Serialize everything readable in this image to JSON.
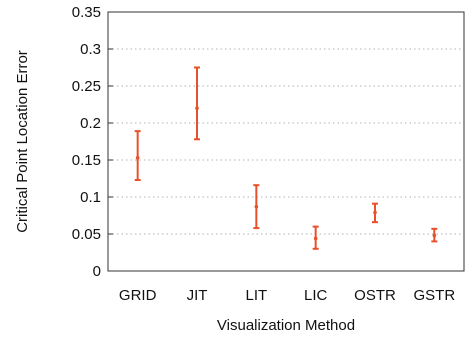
{
  "chart_data": {
    "type": "scatter",
    "subtype": "error-bar",
    "title": "",
    "xlabel": "Visualization Method",
    "ylabel": "Critical Point Location Error",
    "categories": [
      "GRID",
      "JIT",
      "LIT",
      "LIC",
      "OSTR",
      "GSTR"
    ],
    "series": [
      {
        "mean": [
          0.153,
          0.22,
          0.087,
          0.044,
          0.079,
          0.048
        ],
        "lower": [
          0.123,
          0.178,
          0.058,
          0.03,
          0.066,
          0.04
        ],
        "upper": [
          0.189,
          0.275,
          0.116,
          0.06,
          0.091,
          0.057
        ]
      }
    ],
    "ylim": [
      0,
      0.35
    ],
    "yticks": [
      "0",
      "0.05",
      "0.1",
      "0.15",
      "0.2",
      "0.25",
      "0.3",
      "0.35"
    ],
    "grid": "horizontal dotted",
    "color": "#e8502a"
  }
}
